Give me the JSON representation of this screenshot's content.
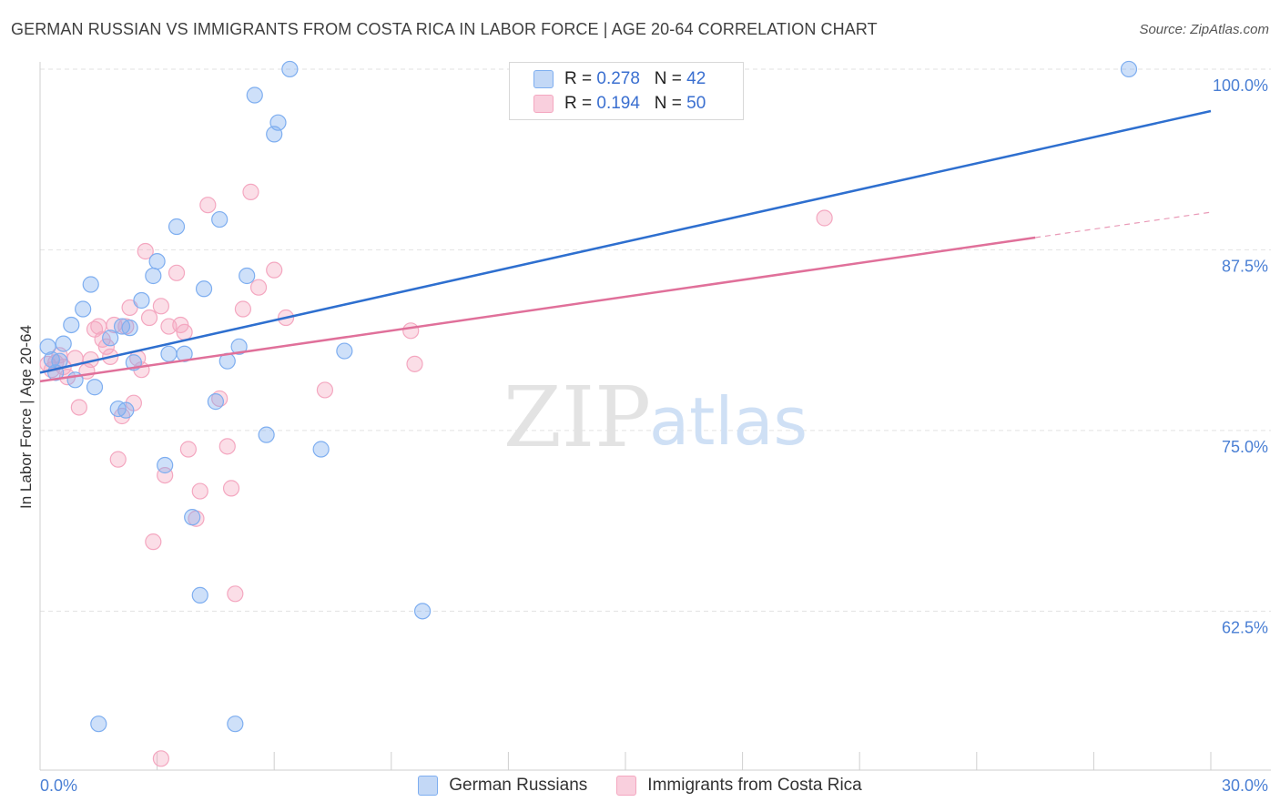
{
  "title": "GERMAN RUSSIAN VS IMMIGRANTS FROM COSTA RICA IN LABOR FORCE | AGE 20-64 CORRELATION CHART",
  "source": "Source: ZipAtlas.com",
  "watermark": {
    "zip": "ZIP",
    "atlas": "atlas"
  },
  "legend": {
    "rows": [
      {
        "r_label": "R =",
        "r_value": "0.278",
        "n_label": "N =",
        "n_value": "42"
      },
      {
        "r_label": "R =",
        "r_value": "0.194",
        "n_label": "N =",
        "n_value": "50"
      }
    ]
  },
  "chart_data": {
    "type": "scatter",
    "title": "GERMAN RUSSIAN VS IMMIGRANTS FROM COSTA RICA IN LABOR FORCE | AGE 20-64 CORRELATION CHART",
    "xlabel": "",
    "ylabel": "In Labor Force | Age 20-64",
    "xlim": [
      0,
      30
    ],
    "ylim": [
      51.5,
      100.5
    ],
    "x_tick_labels": [
      "0.0%",
      "30.0%"
    ],
    "y_ticks": [
      100,
      87.5,
      75,
      62.5
    ],
    "y_tick_labels": [
      "100.0%",
      "87.5%",
      "75.0%",
      "62.5%"
    ],
    "colors": {
      "blue": "#7eaef0",
      "pink": "#f4a7c0",
      "blue_line": "#2e6fcf",
      "pink_line": "#e0709a",
      "tick_label": "#4a7fd4"
    },
    "series": [
      {
        "name": "German Russians",
        "color": "#7eaef0",
        "trend": {
          "x0": 0,
          "y0": 79.0,
          "x1": 30,
          "y1": 97.1,
          "dash_from": null
        },
        "points": [
          [
            0.2,
            80.8
          ],
          [
            0.3,
            79.9
          ],
          [
            0.4,
            79.0
          ],
          [
            0.5,
            79.8
          ],
          [
            0.6,
            81.0
          ],
          [
            0.8,
            82.3
          ],
          [
            0.9,
            78.5
          ],
          [
            1.1,
            83.4
          ],
          [
            1.3,
            85.1
          ],
          [
            1.4,
            78.0
          ],
          [
            1.8,
            81.4
          ],
          [
            2.0,
            76.5
          ],
          [
            2.1,
            82.2
          ],
          [
            2.2,
            76.4
          ],
          [
            2.3,
            82.1
          ],
          [
            2.4,
            79.7
          ],
          [
            2.6,
            84.0
          ],
          [
            2.9,
            85.7
          ],
          [
            3.0,
            86.7
          ],
          [
            3.2,
            72.6
          ],
          [
            3.3,
            80.3
          ],
          [
            3.5,
            89.1
          ],
          [
            3.7,
            80.3
          ],
          [
            3.9,
            69.0
          ],
          [
            4.1,
            63.6
          ],
          [
            4.2,
            84.8
          ],
          [
            4.5,
            77.0
          ],
          [
            4.6,
            89.6
          ],
          [
            4.8,
            79.8
          ],
          [
            5.0,
            54.7
          ],
          [
            5.1,
            80.8
          ],
          [
            5.3,
            85.7
          ],
          [
            5.5,
            98.2
          ],
          [
            5.8,
            74.7
          ],
          [
            6.0,
            95.5
          ],
          [
            6.1,
            96.3
          ],
          [
            6.4,
            100.0
          ],
          [
            7.2,
            73.7
          ],
          [
            7.8,
            80.5
          ],
          [
            9.8,
            62.5
          ],
          [
            1.5,
            54.7
          ],
          [
            27.9,
            100.0
          ]
        ]
      },
      {
        "name": "Immigrants from Costa Rica",
        "color": "#f4a7c0",
        "trend": {
          "x0": 0,
          "y0": 78.4,
          "x1": 30,
          "y1": 90.1,
          "dash_from": 25.5
        },
        "points": [
          [
            0.2,
            79.6
          ],
          [
            0.3,
            79.2
          ],
          [
            0.4,
            79.7
          ],
          [
            0.5,
            80.2
          ],
          [
            0.6,
            79.4
          ],
          [
            0.7,
            78.7
          ],
          [
            0.9,
            80.0
          ],
          [
            1.0,
            76.6
          ],
          [
            1.2,
            79.1
          ],
          [
            1.3,
            79.9
          ],
          [
            1.4,
            82.0
          ],
          [
            1.5,
            82.2
          ],
          [
            1.7,
            80.8
          ],
          [
            1.8,
            80.1
          ],
          [
            1.9,
            82.3
          ],
          [
            2.0,
            73.0
          ],
          [
            2.1,
            76.0
          ],
          [
            2.3,
            83.5
          ],
          [
            2.4,
            76.9
          ],
          [
            2.5,
            80.0
          ],
          [
            2.7,
            87.4
          ],
          [
            2.8,
            82.8
          ],
          [
            2.9,
            67.3
          ],
          [
            3.1,
            83.6
          ],
          [
            3.2,
            71.9
          ],
          [
            3.3,
            82.2
          ],
          [
            3.5,
            85.9
          ],
          [
            3.6,
            82.3
          ],
          [
            3.7,
            81.8
          ],
          [
            3.8,
            73.7
          ],
          [
            4.0,
            68.9
          ],
          [
            4.1,
            70.8
          ],
          [
            4.3,
            90.6
          ],
          [
            4.6,
            77.2
          ],
          [
            4.8,
            73.9
          ],
          [
            4.9,
            71.0
          ],
          [
            5.0,
            63.7
          ],
          [
            5.2,
            83.4
          ],
          [
            5.4,
            91.5
          ],
          [
            5.6,
            84.9
          ],
          [
            6.0,
            86.1
          ],
          [
            6.3,
            82.8
          ],
          [
            7.3,
            77.8
          ],
          [
            9.5,
            81.9
          ],
          [
            9.6,
            79.6
          ],
          [
            3.1,
            52.3
          ],
          [
            20.1,
            89.7
          ],
          [
            2.2,
            82.2
          ],
          [
            1.6,
            81.3
          ],
          [
            2.6,
            79.2
          ]
        ]
      }
    ]
  },
  "bottom_legend": [
    {
      "label": "German Russians"
    },
    {
      "label": "Immigrants from Costa Rica"
    }
  ]
}
